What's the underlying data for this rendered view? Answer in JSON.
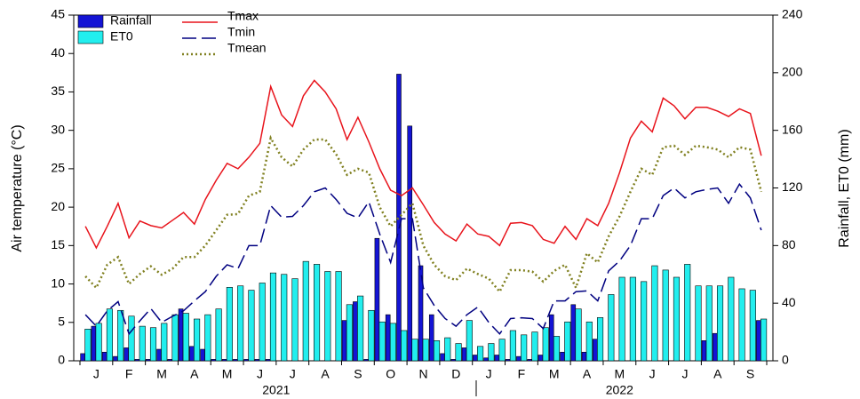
{
  "chart_data": {
    "type": "bar-line",
    "y_label": "Air temperature (°C)",
    "y2_label": "Rainfall, ET0 (mm)",
    "categories": [
      null,
      "J",
      null,
      null,
      "F",
      null,
      null,
      "M",
      null,
      null,
      "A",
      null,
      null,
      "M",
      null,
      null,
      "J",
      null,
      null,
      "J",
      null,
      null,
      "A",
      null,
      null,
      "S",
      null,
      null,
      "O",
      null,
      null,
      "N",
      null,
      null,
      "D",
      null,
      null,
      "J",
      null,
      null,
      "F",
      null,
      null,
      "M",
      null,
      null,
      "A",
      null,
      null,
      "M",
      null,
      null,
      "J",
      null,
      null,
      "J",
      null,
      null,
      "A",
      null,
      null,
      "S",
      null
    ],
    "x_groups": [
      {
        "label": "2021",
        "months": 12
      },
      {
        "label": "2022",
        "months": 9
      }
    ],
    "ylim": [
      0,
      45
    ],
    "yticks": [
      0,
      5,
      10,
      15,
      20,
      25,
      30,
      35,
      40,
      45
    ],
    "y2lim": [
      0,
      240
    ],
    "y2ticks": [
      0,
      40,
      80,
      120,
      160,
      200,
      240
    ],
    "grid": false,
    "legend": "top-left",
    "series": [
      {
        "name": "Rainfall",
        "kind": "bar",
        "axis": "y2",
        "color": "#1414d4",
        "values": [
          5,
          24,
          6,
          3,
          9,
          1,
          1,
          8,
          1,
          36,
          10,
          8,
          1,
          1,
          1,
          1,
          1,
          1,
          0,
          0,
          0,
          0,
          0,
          0,
          28,
          41,
          1,
          85,
          32,
          199,
          163,
          66,
          32,
          5,
          1,
          9,
          4,
          2,
          4,
          1,
          3,
          1,
          4,
          32,
          6,
          39,
          6,
          15,
          0,
          0,
          0,
          0,
          0,
          0,
          0,
          0,
          0,
          14,
          19,
          0,
          0,
          0,
          28
        ]
      },
      {
        "name": "ET0",
        "kind": "bar",
        "axis": "y2",
        "color": "#22eeee",
        "values": [
          22,
          26,
          36,
          35,
          31,
          24,
          23,
          26,
          32,
          33,
          29,
          32,
          36,
          51,
          52,
          49,
          54,
          61,
          60,
          57,
          69,
          67,
          62,
          62,
          39,
          45,
          35,
          27,
          26,
          21,
          15,
          15,
          14,
          16,
          12,
          28,
          10,
          12,
          15,
          21,
          18,
          20,
          23,
          17,
          27,
          36,
          27,
          30,
          46,
          58,
          58,
          55,
          66,
          63,
          58,
          67,
          52,
          52,
          52,
          58,
          50,
          49,
          29
        ]
      },
      {
        "name": "Tmax",
        "kind": "line",
        "axis": "y",
        "color": "#e8141c",
        "style": "solid",
        "values": [
          17.5,
          14.7,
          17.5,
          20.5,
          16,
          18.2,
          17.6,
          17.3,
          18.3,
          19.3,
          17.8,
          21,
          23.5,
          25.7,
          25,
          26.5,
          28.3,
          35.7,
          32,
          30.5,
          34.5,
          36.5,
          35,
          32.8,
          28.8,
          31.7,
          28.5,
          25,
          22.2,
          21.5,
          22.5,
          20.3,
          18,
          16.5,
          15.6,
          17.8,
          16.5,
          16.2,
          15,
          17.9,
          18,
          17.6,
          15.8,
          15.3,
          17.5,
          15.8,
          18.5,
          17.6,
          20.5,
          24.5,
          29,
          31.2,
          29.8,
          34.2,
          33.2,
          31.5,
          33,
          33,
          32.5,
          31.8,
          32.8,
          32.2,
          26.7
        ]
      },
      {
        "name": "Tmin",
        "kind": "line",
        "axis": "y",
        "color": "#000080",
        "style": "dashed",
        "values": [
          6,
          4.5,
          6.5,
          7.7,
          3.5,
          5.2,
          6.8,
          5,
          5.8,
          6.5,
          7.8,
          9,
          11,
          12.5,
          12,
          15,
          15,
          20.2,
          18.7,
          18.8,
          20.2,
          22,
          22.5,
          21,
          19.2,
          18.6,
          20.7,
          16.5,
          12.8,
          18.5,
          18.5,
          9.5,
          7.2,
          5.5,
          4.5,
          6,
          7,
          5,
          3.5,
          5.5,
          5.6,
          5.5,
          4.2,
          7.8,
          7.8,
          9,
          9.1,
          7.8,
          11.7,
          13,
          15,
          18.5,
          18.5,
          21.5,
          22.5,
          21.2,
          22,
          22.3,
          22.5,
          20.5,
          23,
          21.2,
          17
        ]
      },
      {
        "name": "Tmean",
        "kind": "line",
        "axis": "y",
        "color": "#808020",
        "style": "dotted",
        "values": [
          11,
          9.5,
          12.5,
          13.5,
          10,
          11.3,
          12.3,
          11.2,
          12,
          13.5,
          13.5,
          15,
          17,
          19,
          19.1,
          21.5,
          22,
          29,
          26.5,
          25.3,
          27.5,
          28.8,
          28.8,
          26.9,
          24.2,
          25,
          24.5,
          20,
          17.5,
          19,
          20.5,
          15,
          12.5,
          11,
          10.5,
          12,
          11.3,
          10.7,
          9,
          11.8,
          11.8,
          11.6,
          10.3,
          11.7,
          12.5,
          9.5,
          14,
          12.8,
          16.2,
          18.8,
          22,
          25,
          24.2,
          27.8,
          28,
          26.8,
          28,
          27.8,
          27.5,
          26.5,
          27.8,
          27.5,
          22
        ]
      }
    ]
  }
}
